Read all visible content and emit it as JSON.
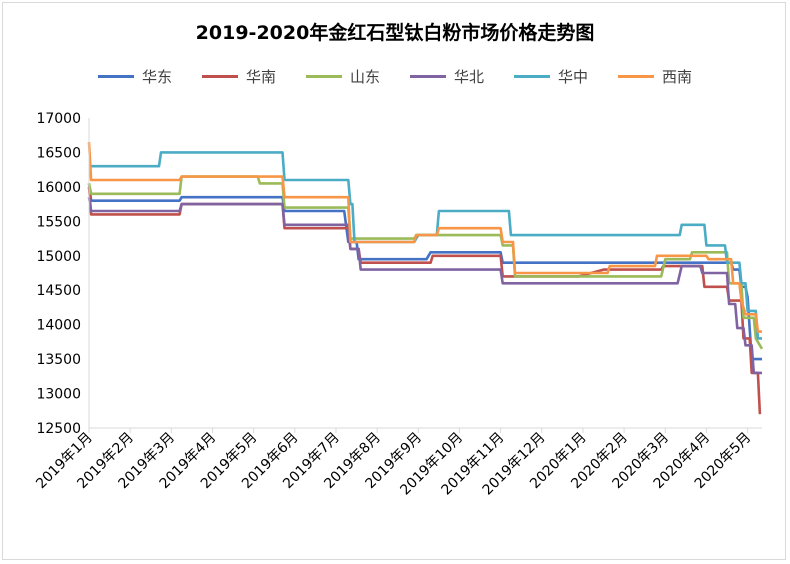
{
  "chart_data": {
    "type": "line",
    "title": "2019-2020年金红石型钛白粉市场价格走势图",
    "xlabel": "",
    "ylabel": "",
    "ylim": [
      12500,
      17000
    ],
    "yticks": [
      12500,
      13000,
      13500,
      14000,
      14500,
      15000,
      15500,
      16000,
      16500,
      17000
    ],
    "categories": [
      "2019年1月",
      "2019年2月",
      "2019年3月",
      "2019年4月",
      "2019年5月",
      "2019年6月",
      "2019年7月",
      "2019年8月",
      "2019年9月",
      "2019年10月",
      "2019年11月",
      "2019年12月",
      "2020年1月",
      "2020年2月",
      "2020年3月",
      "2020年4月",
      "2020年5月"
    ],
    "xrange": [
      0,
      16.35
    ],
    "grid": false,
    "legend_position": "top",
    "series": [
      {
        "name": "华东",
        "color": "#4472c4",
        "points": [
          [
            0,
            16050
          ],
          [
            0.05,
            15800
          ],
          [
            1.15,
            15800
          ],
          [
            2.2,
            15800
          ],
          [
            2.25,
            15850
          ],
          [
            4.7,
            15850
          ],
          [
            4.75,
            15650
          ],
          [
            6.2,
            15650
          ],
          [
            6.3,
            15200
          ],
          [
            6.5,
            15200
          ],
          [
            6.55,
            14950
          ],
          [
            8.2,
            14950
          ],
          [
            8.3,
            15050
          ],
          [
            10.0,
            15050
          ],
          [
            10.05,
            14900
          ],
          [
            15.6,
            14900
          ],
          [
            15.65,
            14800
          ],
          [
            15.8,
            14800
          ],
          [
            15.85,
            14550
          ],
          [
            15.95,
            14550
          ],
          [
            16.0,
            14400
          ],
          [
            16.1,
            13500
          ],
          [
            16.35,
            13500
          ]
        ]
      },
      {
        "name": "华南",
        "color": "#c0504d",
        "points": [
          [
            0,
            16000
          ],
          [
            0.05,
            15600
          ],
          [
            2.2,
            15600
          ],
          [
            2.25,
            15750
          ],
          [
            4.7,
            15750
          ],
          [
            4.75,
            15400
          ],
          [
            6.3,
            15400
          ],
          [
            6.35,
            15100
          ],
          [
            6.55,
            15100
          ],
          [
            6.6,
            14900
          ],
          [
            8.3,
            14900
          ],
          [
            8.35,
            15000
          ],
          [
            10.0,
            15000
          ],
          [
            10.05,
            14700
          ],
          [
            11.9,
            14700
          ],
          [
            12.5,
            14800
          ],
          [
            13.9,
            14800
          ],
          [
            13.95,
            14850
          ],
          [
            14.9,
            14850
          ],
          [
            14.95,
            14550
          ],
          [
            15.5,
            14550
          ],
          [
            15.55,
            14350
          ],
          [
            15.85,
            14350
          ],
          [
            15.9,
            13800
          ],
          [
            16.05,
            13800
          ],
          [
            16.1,
            13300
          ],
          [
            16.25,
            13300
          ],
          [
            16.3,
            12700
          ]
        ]
      },
      {
        "name": "山东",
        "color": "#9bbb59",
        "points": [
          [
            0,
            16050
          ],
          [
            0.05,
            15900
          ],
          [
            2.2,
            15900
          ],
          [
            2.25,
            16150
          ],
          [
            4.1,
            16150
          ],
          [
            4.15,
            16050
          ],
          [
            4.7,
            16050
          ],
          [
            4.75,
            15700
          ],
          [
            6.3,
            15700
          ],
          [
            6.35,
            15250
          ],
          [
            7.9,
            15250
          ],
          [
            7.95,
            15300
          ],
          [
            10.0,
            15300
          ],
          [
            10.05,
            15150
          ],
          [
            10.3,
            15150
          ],
          [
            10.35,
            14700
          ],
          [
            13.9,
            14700
          ],
          [
            14.0,
            14950
          ],
          [
            14.6,
            14950
          ],
          [
            14.65,
            15050
          ],
          [
            15.5,
            15050
          ],
          [
            15.55,
            14600
          ],
          [
            15.85,
            14600
          ],
          [
            15.9,
            14100
          ],
          [
            16.15,
            14100
          ],
          [
            16.2,
            13800
          ],
          [
            16.3,
            13700
          ],
          [
            16.35,
            13650
          ]
        ]
      },
      {
        "name": "华北",
        "color": "#8064a2",
        "points": [
          [
            0,
            15850
          ],
          [
            0.05,
            15650
          ],
          [
            2.2,
            15650
          ],
          [
            2.25,
            15750
          ],
          [
            4.7,
            15750
          ],
          [
            4.75,
            15450
          ],
          [
            6.3,
            15450
          ],
          [
            6.35,
            15100
          ],
          [
            6.55,
            15100
          ],
          [
            6.6,
            14800
          ],
          [
            10.0,
            14800
          ],
          [
            10.05,
            14600
          ],
          [
            14.3,
            14600
          ],
          [
            14.4,
            14850
          ],
          [
            14.85,
            14850
          ],
          [
            14.9,
            14750
          ],
          [
            15.5,
            14750
          ],
          [
            15.55,
            14300
          ],
          [
            15.7,
            14300
          ],
          [
            15.75,
            13950
          ],
          [
            15.9,
            13950
          ],
          [
            15.95,
            13700
          ],
          [
            16.1,
            13700
          ],
          [
            16.15,
            13300
          ],
          [
            16.35,
            13300
          ]
        ]
      },
      {
        "name": "华中",
        "color": "#4bacc6",
        "points": [
          [
            0,
            16300
          ],
          [
            1.7,
            16300
          ],
          [
            1.75,
            16500
          ],
          [
            4.7,
            16500
          ],
          [
            4.75,
            16100
          ],
          [
            6.3,
            16100
          ],
          [
            6.35,
            15750
          ],
          [
            6.4,
            15750
          ],
          [
            6.45,
            15200
          ],
          [
            7.9,
            15200
          ],
          [
            8.0,
            15300
          ],
          [
            8.45,
            15300
          ],
          [
            8.5,
            15650
          ],
          [
            10.2,
            15650
          ],
          [
            10.25,
            15300
          ],
          [
            14.35,
            15300
          ],
          [
            14.4,
            15450
          ],
          [
            14.95,
            15450
          ],
          [
            15.0,
            15150
          ],
          [
            15.45,
            15150
          ],
          [
            15.5,
            14900
          ],
          [
            15.8,
            14900
          ],
          [
            15.85,
            14600
          ],
          [
            15.95,
            14600
          ],
          [
            16.0,
            14200
          ],
          [
            16.2,
            14200
          ],
          [
            16.25,
            13800
          ],
          [
            16.35,
            13800
          ]
        ]
      },
      {
        "name": "西南",
        "color": "#f79646",
        "points": [
          [
            0,
            16650
          ],
          [
            0.05,
            16100
          ],
          [
            2.2,
            16100
          ],
          [
            2.25,
            16150
          ],
          [
            4.7,
            16150
          ],
          [
            4.75,
            15850
          ],
          [
            6.3,
            15850
          ],
          [
            6.35,
            15200
          ],
          [
            7.9,
            15200
          ],
          [
            7.95,
            15300
          ],
          [
            8.45,
            15300
          ],
          [
            8.5,
            15400
          ],
          [
            10.0,
            15400
          ],
          [
            10.05,
            15200
          ],
          [
            10.3,
            15200
          ],
          [
            10.35,
            14750
          ],
          [
            12.6,
            14750
          ],
          [
            12.65,
            14850
          ],
          [
            13.75,
            14850
          ],
          [
            13.8,
            15000
          ],
          [
            15.0,
            15000
          ],
          [
            15.05,
            14950
          ],
          [
            15.6,
            14950
          ],
          [
            15.65,
            14600
          ],
          [
            15.8,
            14600
          ],
          [
            15.85,
            14350
          ],
          [
            15.95,
            14150
          ],
          [
            16.2,
            14150
          ],
          [
            16.25,
            13900
          ],
          [
            16.35,
            13900
          ]
        ]
      }
    ]
  }
}
